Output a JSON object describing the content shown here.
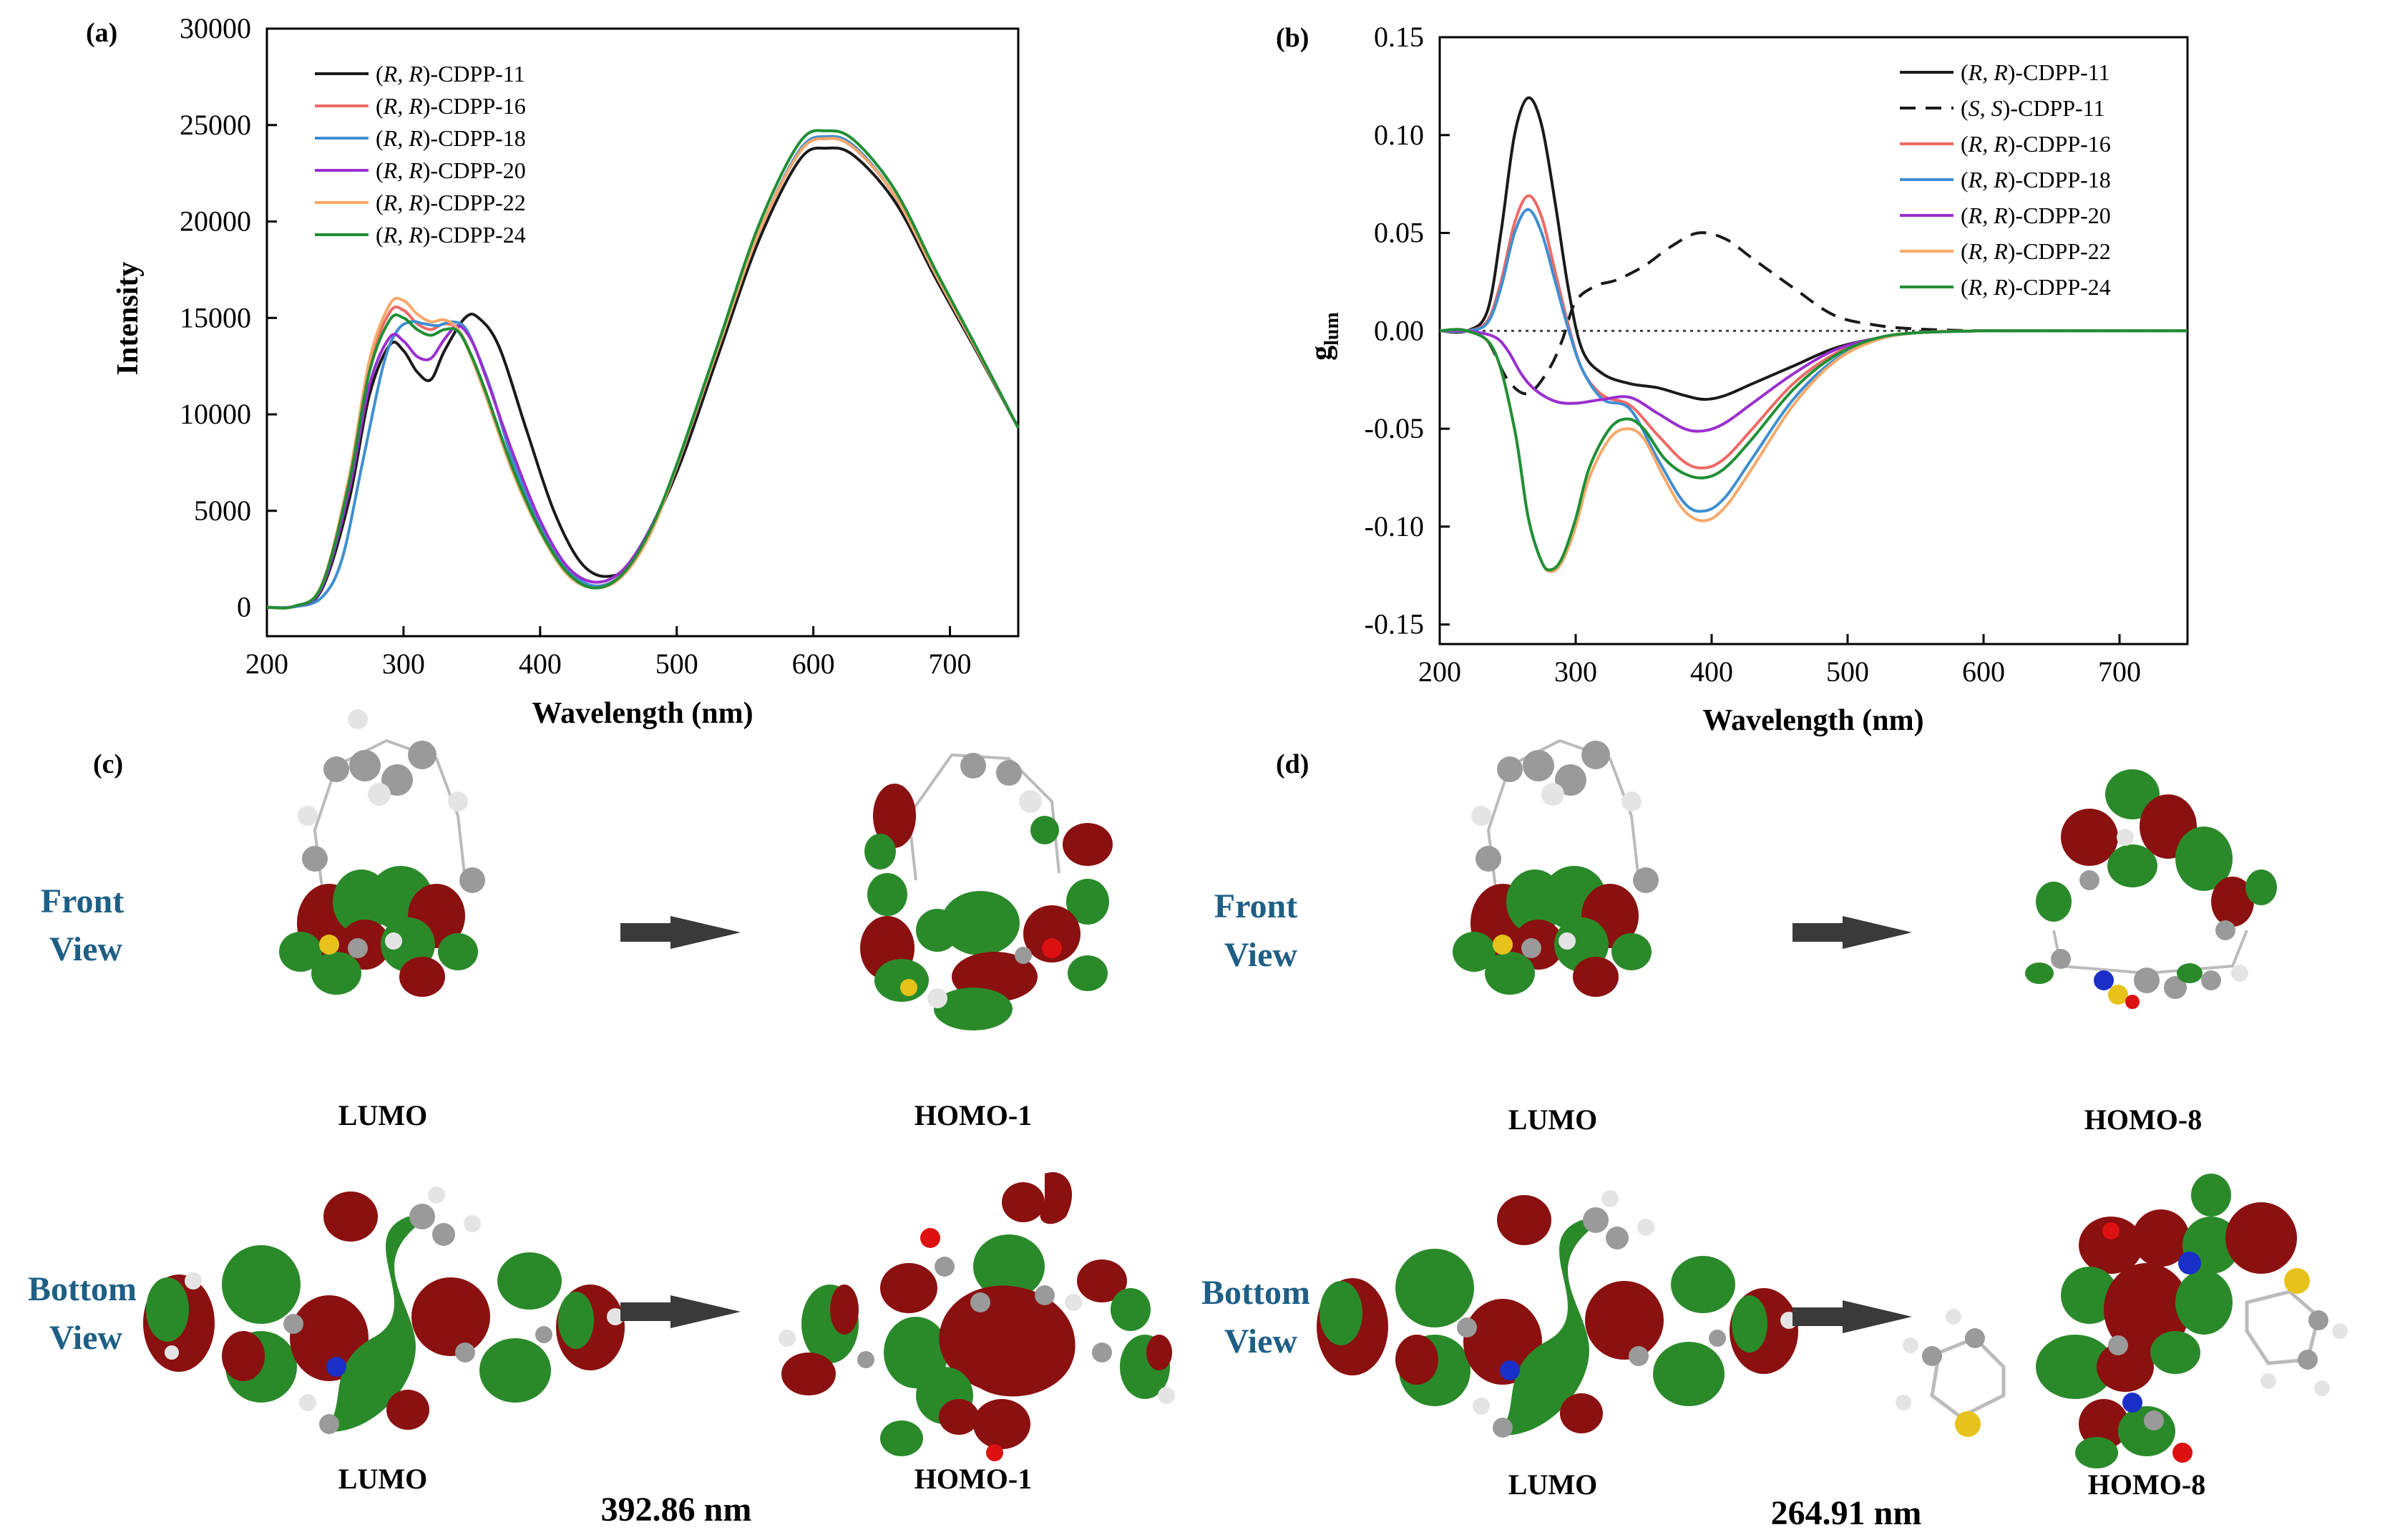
{
  "colors": {
    "black": "#1a1a1a",
    "red": "#ee6a64",
    "blue": "#3f8fd2",
    "purple": "#9a2fcf",
    "orange": "#f6a96a",
    "green": "#1f8f35",
    "view_label": "#1f5f86",
    "lobe_red": "#8b1010",
    "lobe_green": "#2a8a2a",
    "atom_gray": "#9a9a9a",
    "atom_white": "#e4e4e4",
    "atom_yellow": "#e6c21a",
    "atom_blue": "#1a2fc8",
    "atom_red": "#dd1111",
    "arrow": "#3a3a3a"
  },
  "chart_data": [
    {
      "panel": "(a)",
      "type": "line",
      "title": "",
      "xlabel": "Wavelength (nm)",
      "ylabel": "Intensity",
      "xlim": [
        200,
        750
      ],
      "ylim": [
        -1500,
        30000
      ],
      "xticks": [
        200,
        300,
        400,
        500,
        600,
        700
      ],
      "yticks": [
        0,
        5000,
        10000,
        15000,
        20000,
        25000,
        30000
      ],
      "xtick_labels": [
        "200",
        "300",
        "400",
        "500",
        "600",
        "700"
      ],
      "ytick_labels": [
        "0",
        "5000",
        "10000",
        "15000",
        "20000",
        "25000",
        "30000"
      ],
      "legend_position": "top-left",
      "series": [
        {
          "name": "(R, R)-CDPP-11",
          "label_italic": "R, R",
          "label_prefix": "(",
          "label_suffix": ")-CDPP-11",
          "color_key": "black",
          "dash": "",
          "x": [
            200,
            220,
            240,
            260,
            275,
            290,
            300,
            310,
            320,
            330,
            345,
            355,
            370,
            390,
            410,
            430,
            450,
            470,
            500,
            530,
            560,
            590,
            610,
            630,
            660,
            690,
            720,
            750
          ],
          "y": [
            0,
            50,
            900,
            5500,
            11000,
            13600,
            13300,
            12200,
            11800,
            13300,
            15000,
            15000,
            13500,
            9200,
            5000,
            2300,
            1600,
            2600,
            7000,
            13000,
            19000,
            23200,
            23800,
            23400,
            21000,
            17000,
            13200,
            9300
          ]
        },
        {
          "name": "(R, R)-CDPP-16",
          "label_italic": "R, R",
          "label_prefix": "(",
          "label_suffix": ")-CDPP-16",
          "color_key": "red",
          "dash": "",
          "x": [
            200,
            220,
            240,
            260,
            275,
            290,
            300,
            310,
            320,
            330,
            340,
            350,
            360,
            380,
            400,
            420,
            440,
            460,
            480,
            500,
            530,
            560,
            590,
            610,
            630,
            660,
            690,
            720,
            750
          ],
          "y": [
            0,
            50,
            1100,
            6500,
            12500,
            15300,
            15400,
            14700,
            14400,
            14700,
            14400,
            13000,
            11200,
            7200,
            4000,
            1800,
            1100,
            1700,
            3800,
            7300,
            13400,
            19400,
            23600,
            24300,
            23800,
            21300,
            17200,
            13300,
            9300
          ]
        },
        {
          "name": "(R, R)-CDPP-18",
          "label_italic": "R, R",
          "label_prefix": "(",
          "label_suffix": ")-CDPP-18",
          "color_key": "blue",
          "dash": "",
          "x": [
            200,
            220,
            240,
            255,
            270,
            285,
            295,
            305,
            315,
            325,
            335,
            345,
            355,
            365,
            380,
            400,
            420,
            440,
            460,
            480,
            500,
            530,
            560,
            590,
            610,
            630,
            660,
            690,
            720,
            750
          ],
          "y": [
            0,
            20,
            500,
            2500,
            7500,
            12500,
            14300,
            14800,
            14700,
            14600,
            14800,
            14500,
            13000,
            11100,
            7600,
            4300,
            2000,
            1100,
            1700,
            3800,
            7300,
            13400,
            19400,
            23700,
            24400,
            23900,
            21300,
            17200,
            13300,
            9300
          ]
        },
        {
          "name": "(R, R)-CDPP-20",
          "label_italic": "R, R",
          "label_prefix": "(",
          "label_suffix": ")-CDPP-20",
          "color_key": "purple",
          "dash": "",
          "x": [
            200,
            220,
            240,
            260,
            275,
            290,
            300,
            310,
            320,
            330,
            340,
            350,
            360,
            380,
            400,
            420,
            440,
            460,
            480,
            500,
            530,
            560,
            590,
            610,
            630,
            660,
            690,
            720,
            750
          ],
          "y": [
            0,
            50,
            1000,
            6000,
            11500,
            14000,
            13800,
            13000,
            12900,
            13900,
            14600,
            13800,
            12000,
            8000,
            4500,
            2100,
            1300,
            1900,
            4000,
            7300,
            13400,
            19400,
            23600,
            24300,
            23800,
            21300,
            17200,
            13300,
            9300
          ]
        },
        {
          "name": "(R, R)-CDPP-22",
          "label_italic": "R, R",
          "label_prefix": "(",
          "label_suffix": ")-CDPP-22",
          "color_key": "orange",
          "dash": "",
          "x": [
            200,
            220,
            240,
            260,
            275,
            290,
            300,
            310,
            320,
            330,
            340,
            350,
            360,
            380,
            400,
            420,
            440,
            460,
            480,
            500,
            530,
            560,
            590,
            610,
            630,
            660,
            690,
            720,
            750
          ],
          "y": [
            0,
            50,
            1150,
            6700,
            12800,
            15700,
            15900,
            15200,
            14800,
            14900,
            14400,
            12900,
            11000,
            7000,
            3900,
            1700,
            1000,
            1600,
            3700,
            7300,
            13400,
            19400,
            23600,
            24300,
            23800,
            21300,
            17200,
            13300,
            9300
          ]
        },
        {
          "name": "(R, R)-CDPP-24",
          "label_italic": "R, R",
          "label_prefix": "(",
          "label_suffix": ")-CDPP-24",
          "color_key": "green",
          "dash": "",
          "x": [
            200,
            220,
            240,
            260,
            275,
            290,
            300,
            310,
            320,
            330,
            340,
            350,
            360,
            380,
            400,
            420,
            440,
            460,
            480,
            500,
            530,
            560,
            590,
            610,
            630,
            660,
            690,
            720,
            750
          ],
          "y": [
            0,
            50,
            1100,
            6400,
            12200,
            14900,
            15000,
            14400,
            14100,
            14400,
            14300,
            13000,
            11200,
            7200,
            4000,
            1800,
            1000,
            1700,
            3900,
            7400,
            13600,
            19800,
            24100,
            24700,
            24200,
            21600,
            17400,
            13400,
            9300
          ]
        }
      ]
    },
    {
      "panel": "(b)",
      "type": "line",
      "title": "",
      "xlabel": "Wavelength (nm)",
      "ylabel": "g",
      "ylabel_sub": "lum",
      "xlim": [
        200,
        750
      ],
      "ylim": [
        -0.16,
        0.15
      ],
      "xticks": [
        200,
        300,
        400,
        500,
        600,
        700
      ],
      "yticks": [
        -0.15,
        -0.1,
        -0.05,
        0.0,
        0.05,
        0.1,
        0.15
      ],
      "xtick_labels": [
        "200",
        "300",
        "400",
        "500",
        "600",
        "700"
      ],
      "ytick_labels": [
        "-0.15",
        "-0.10",
        "-0.05",
        "0.00",
        "0.05",
        "0.10",
        "0.15"
      ],
      "zero_line": true,
      "legend_position": "top-right",
      "series": [
        {
          "name": "(R, R)-CDPP-11",
          "label_italic": "R, R",
          "label_prefix": "(",
          "label_suffix": ")-CDPP-11",
          "color_key": "black",
          "dash": "",
          "x": [
            200,
            220,
            235,
            245,
            255,
            265,
            275,
            285,
            295,
            305,
            320,
            340,
            360,
            380,
            395,
            410,
            430,
            460,
            490,
            520,
            550,
            600,
            650,
            750
          ],
          "y": [
            0,
            0,
            0.01,
            0.05,
            0.1,
            0.119,
            0.105,
            0.065,
            0.02,
            -0.01,
            -0.022,
            -0.027,
            -0.029,
            -0.033,
            -0.035,
            -0.033,
            -0.027,
            -0.018,
            -0.009,
            -0.004,
            -0.001,
            0,
            0,
            0
          ]
        },
        {
          "name": "(S, S)-CDPP-11",
          "label_italic": "S, S",
          "label_prefix": "(",
          "label_suffix": ")-CDPP-11",
          "color_key": "black",
          "dash": "22,14",
          "x": [
            200,
            220,
            235,
            250,
            265,
            280,
            290,
            300,
            315,
            330,
            350,
            370,
            390,
            410,
            430,
            460,
            490,
            520,
            550,
            600,
            650,
            750
          ],
          "y": [
            0,
            0,
            -0.005,
            -0.025,
            -0.032,
            -0.02,
            -0.005,
            0.015,
            0.023,
            0.026,
            0.033,
            0.043,
            0.05,
            0.047,
            0.037,
            0.022,
            0.008,
            0.003,
            0.001,
            0,
            0,
            0
          ]
        },
        {
          "name": "(R, R)-CDPP-16",
          "label_italic": "R, R",
          "label_prefix": "(",
          "label_suffix": ")-CDPP-16",
          "color_key": "red",
          "dash": "",
          "x": [
            200,
            220,
            235,
            245,
            255,
            265,
            275,
            285,
            295,
            305,
            320,
            340,
            360,
            380,
            395,
            410,
            430,
            460,
            490,
            520,
            550,
            600,
            650,
            750
          ],
          "y": [
            0,
            0,
            0.005,
            0.025,
            0.055,
            0.069,
            0.058,
            0.03,
            0.002,
            -0.02,
            -0.033,
            -0.038,
            -0.053,
            -0.067,
            -0.07,
            -0.065,
            -0.05,
            -0.027,
            -0.012,
            -0.004,
            -0.001,
            0,
            0,
            0
          ]
        },
        {
          "name": "(R, R)-CDPP-18",
          "label_italic": "R, R",
          "label_prefix": "(",
          "label_suffix": ")-CDPP-18",
          "color_key": "blue",
          "dash": "",
          "x": [
            200,
            220,
            235,
            245,
            255,
            265,
            275,
            285,
            295,
            305,
            320,
            340,
            360,
            380,
            395,
            410,
            430,
            460,
            490,
            520,
            550,
            600,
            650,
            750
          ],
          "y": [
            0,
            0,
            0.004,
            0.022,
            0.05,
            0.062,
            0.05,
            0.025,
            0.0,
            -0.02,
            -0.035,
            -0.04,
            -0.065,
            -0.088,
            -0.092,
            -0.085,
            -0.065,
            -0.035,
            -0.015,
            -0.005,
            -0.001,
            0,
            0,
            0
          ]
        },
        {
          "name": "(R, R)-CDPP-20",
          "label_italic": "R, R",
          "label_prefix": "(",
          "label_suffix": ")-CDPP-20",
          "color_key": "purple",
          "dash": "",
          "x": [
            200,
            220,
            240,
            250,
            260,
            270,
            285,
            300,
            320,
            340,
            360,
            380,
            395,
            410,
            430,
            460,
            490,
            520,
            550,
            600,
            650,
            750
          ],
          "y": [
            0,
            0,
            -0.003,
            -0.01,
            -0.022,
            -0.03,
            -0.036,
            -0.037,
            -0.035,
            -0.034,
            -0.042,
            -0.05,
            -0.051,
            -0.047,
            -0.037,
            -0.022,
            -0.01,
            -0.004,
            -0.001,
            0,
            0,
            0
          ]
        },
        {
          "name": "(R, R)-CDPP-22",
          "label_italic": "R, R",
          "label_prefix": "(",
          "label_suffix": ")-CDPP-22",
          "color_key": "orange",
          "dash": "",
          "x": [
            200,
            220,
            240,
            255,
            265,
            275,
            282,
            290,
            300,
            310,
            325,
            338,
            350,
            365,
            380,
            395,
            410,
            430,
            460,
            490,
            520,
            550,
            600,
            650,
            750
          ],
          "y": [
            0,
            0,
            -0.01,
            -0.05,
            -0.095,
            -0.118,
            -0.123,
            -0.118,
            -0.1,
            -0.075,
            -0.055,
            -0.05,
            -0.055,
            -0.075,
            -0.092,
            -0.097,
            -0.09,
            -0.07,
            -0.038,
            -0.016,
            -0.005,
            -0.001,
            0,
            0,
            0
          ]
        },
        {
          "name": "(R, R)-CDPP-24",
          "label_italic": "R, R",
          "label_prefix": "(",
          "label_suffix": ")-CDPP-24",
          "color_key": "green",
          "dash": "",
          "x": [
            200,
            220,
            240,
            255,
            265,
            275,
            282,
            290,
            300,
            310,
            325,
            338,
            350,
            365,
            380,
            395,
            410,
            430,
            460,
            490,
            520,
            550,
            600,
            650,
            750
          ],
          "y": [
            0,
            0,
            -0.01,
            -0.05,
            -0.095,
            -0.118,
            -0.122,
            -0.116,
            -0.096,
            -0.07,
            -0.05,
            -0.045,
            -0.05,
            -0.065,
            -0.073,
            -0.075,
            -0.07,
            -0.055,
            -0.03,
            -0.013,
            -0.004,
            -0.001,
            0,
            0,
            0
          ]
        }
      ]
    }
  ],
  "panel_c": {
    "label": "(c)",
    "front_view_line1": "Front",
    "front_view_line2": "View",
    "bottom_view_line1": "Bottom",
    "bottom_view_line2": "View",
    "front_left_caption": "LUMO",
    "front_right_caption": "HOMO-1",
    "bottom_left_caption": "LUMO",
    "bottom_right_caption": "HOMO-1",
    "transition": "392.86 nm"
  },
  "panel_d": {
    "label": "(d)",
    "front_view_line1": "Front",
    "front_view_line2": "View",
    "bottom_view_line1": "Bottom",
    "bottom_view_line2": "View",
    "front_left_caption": "LUMO",
    "front_right_caption": "HOMO-8",
    "bottom_left_caption": "LUMO",
    "bottom_right_caption": "HOMO-8",
    "transition": "264.91 nm"
  }
}
